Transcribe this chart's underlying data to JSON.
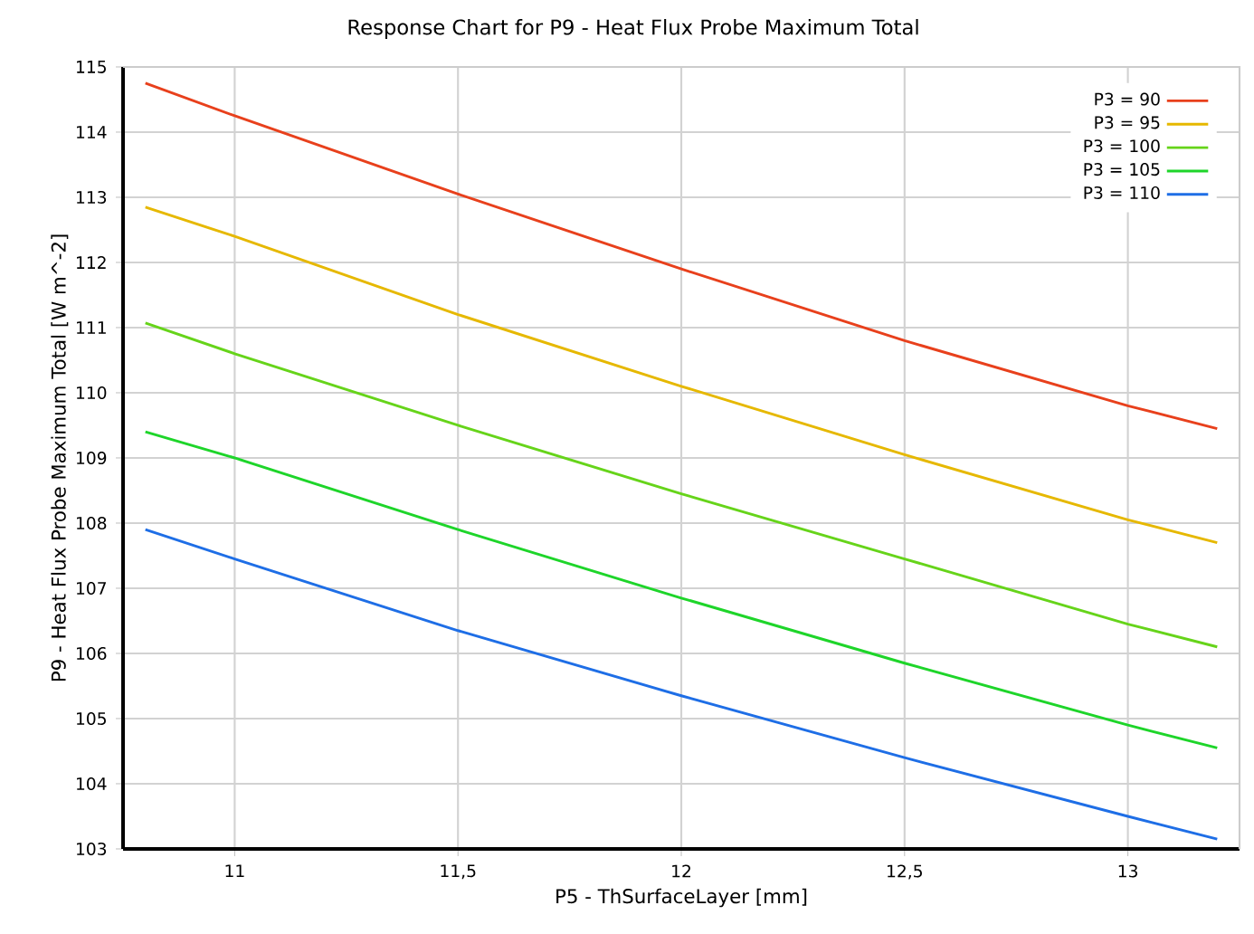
{
  "chart_data": {
    "type": "line",
    "title": "Response Chart for P9 - Heat Flux Probe Maximum Total",
    "xlabel": "P5 - ThSurfaceLayer  [mm]",
    "ylabel": "P9 - Heat Flux Probe Maximum Total  [W m^-2]",
    "x": [
      10.8,
      11,
      11.5,
      12,
      12.5,
      13,
      13.2
    ],
    "series": [
      {
        "name": "P3 = 90",
        "color": "#e8401c",
        "values": [
          114.75,
          114.25,
          113.05,
          111.9,
          110.8,
          109.8,
          109.45
        ]
      },
      {
        "name": "P3 = 95",
        "color": "#e6b800",
        "values": [
          112.85,
          112.4,
          111.2,
          110.1,
          109.05,
          108.05,
          107.7
        ]
      },
      {
        "name": "P3 = 100",
        "color": "#66d41a",
        "values": [
          111.07,
          110.6,
          109.5,
          108.45,
          107.45,
          106.45,
          106.1
        ]
      },
      {
        "name": "P3 = 105",
        "color": "#1ed52a",
        "values": [
          109.4,
          109.0,
          107.9,
          106.85,
          105.85,
          104.9,
          104.55
        ]
      },
      {
        "name": "P3 = 110",
        "color": "#1e6ee6",
        "values": [
          107.9,
          107.45,
          106.35,
          105.35,
          104.4,
          103.5,
          103.15
        ]
      }
    ],
    "xlim": [
      10.75,
      13.25
    ],
    "ylim": [
      103,
      115
    ],
    "xticks": [
      11,
      {
        "value": 11.5,
        "label": "11,5"
      },
      12,
      {
        "value": 12.5,
        "label": "12,5"
      },
      13
    ],
    "yticks": [
      103,
      104,
      105,
      106,
      107,
      108,
      109,
      110,
      111,
      112,
      113,
      114,
      115
    ],
    "grid": true,
    "legend": "top right",
    "marker": "none",
    "line_style": "solid"
  }
}
